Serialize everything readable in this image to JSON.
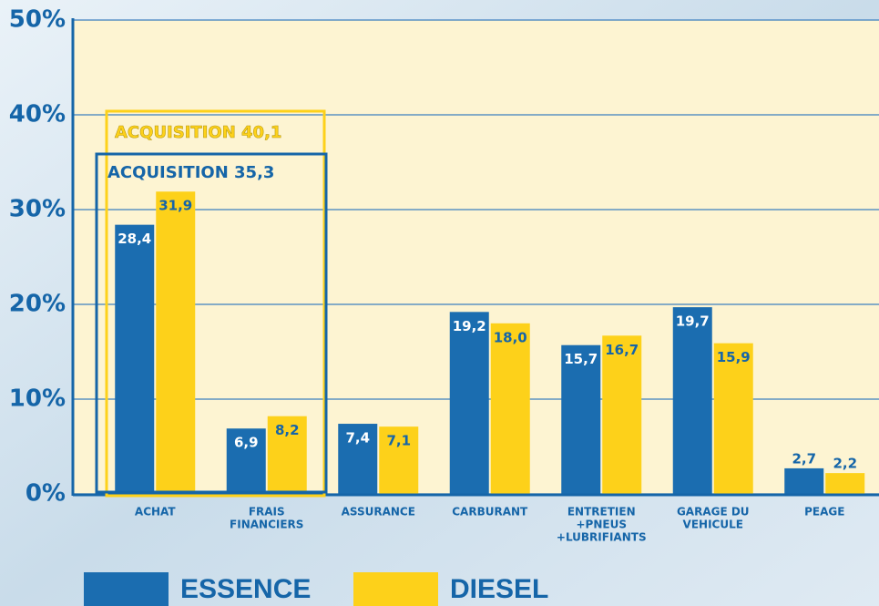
{
  "chart_data": {
    "type": "bar",
    "categories": [
      [
        "ACHAT"
      ],
      [
        "FRAIS",
        "FINANCIERS"
      ],
      [
        "ASSURANCE"
      ],
      [
        "CARBURANT"
      ],
      [
        "ENTRETIEN",
        "+PNEUS",
        "+LUBRIFIANTS"
      ],
      [
        "GARAGE DU",
        "VEHICULE"
      ],
      [
        "PEAGE"
      ]
    ],
    "series": [
      {
        "name": "ESSENCE",
        "color": "#1b6db0",
        "values": [
          28.4,
          6.9,
          7.4,
          19.2,
          15.7,
          19.7,
          2.7
        ],
        "value_labels": [
          "28,4",
          "6,9",
          "7,4",
          "19,2",
          "15,7",
          "19,7",
          "2,7"
        ]
      },
      {
        "name": "DIESEL",
        "color": "#fdd11a",
        "values": [
          31.9,
          8.2,
          7.1,
          18.0,
          16.7,
          15.9,
          2.2
        ],
        "value_labels": [
          "31,9",
          "8,2",
          "7,1",
          "18,0",
          "16,7",
          "15,9",
          "2,2"
        ]
      }
    ],
    "ylim": [
      0,
      50
    ],
    "yticks": [
      {
        "value": 0,
        "label": "0%"
      },
      {
        "value": 10,
        "label": "10%"
      },
      {
        "value": 20,
        "label": "20%"
      },
      {
        "value": 30,
        "label": "30%"
      },
      {
        "value": 40,
        "label": "40%"
      },
      {
        "value": 50,
        "label": "50%"
      }
    ],
    "grid": true,
    "annotations": [
      "ACQUISITION 40,1",
      "ACQUISITION 35,3"
    ]
  }
}
